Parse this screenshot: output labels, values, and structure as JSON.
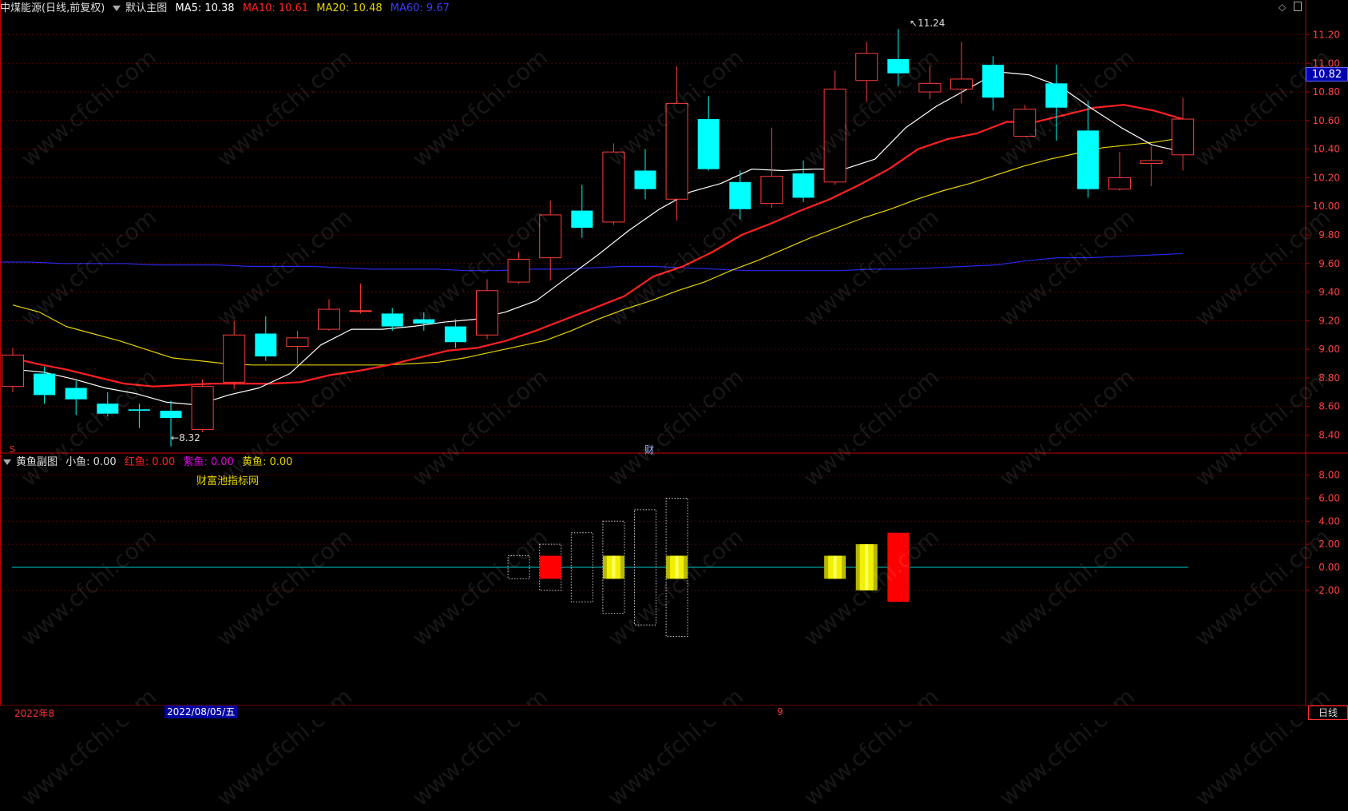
{
  "main_header": {
    "stock": "中煤能源",
    "period": "(日线,前复权)",
    "panel": "默认主图",
    "ma5_label": "MA5: 10.38",
    "ma10_label": "MA10: 10.61",
    "ma20_label": "MA20: 10.48",
    "ma60_label": "MA60: 9.67",
    "colors": {
      "ma5": "#ffffff",
      "ma10": "#ff2020",
      "ma20": "#e6d200",
      "ma60": "#3030ff"
    }
  },
  "sub_header": {
    "panel": "黄鱼副图",
    "small": "小鱼: 0.00",
    "red": "红鱼: 0.00",
    "purple": "紫鱼: 0.00",
    "yellow": "黄鱼: 0.00",
    "brand": "财富池指标网"
  },
  "price_badge": "10.82",
  "marks": {
    "low": "8.32",
    "high": "11.24",
    "left_s": "S",
    "cai": "财"
  },
  "bottom_bar": {
    "left": "2022年8",
    "date": "2022/08/05/五",
    "mid": "9",
    "right": "日线"
  },
  "watermark": "www.cfchi.com",
  "chart_data": [
    {
      "type": "candlestick",
      "y_ticks": [
        "11.20",
        "11.00",
        "10.80",
        "10.60",
        "10.40",
        "10.20",
        "10.00",
        "9.80",
        "9.60",
        "9.40",
        "9.20",
        "9.00",
        "8.80",
        "8.60",
        "8.40"
      ],
      "ylim": [
        8.28,
        11.32
      ],
      "candles": [
        {
          "o": 8.74,
          "h": 9.01,
          "l": 8.7,
          "c": 8.96
        },
        {
          "o": 8.83,
          "h": 8.88,
          "l": 8.62,
          "c": 8.68
        },
        {
          "o": 8.73,
          "h": 8.78,
          "l": 8.54,
          "c": 8.65
        },
        {
          "o": 8.62,
          "h": 8.7,
          "l": 8.53,
          "c": 8.55
        },
        {
          "o": 8.58,
          "h": 8.62,
          "l": 8.45,
          "c": 8.57
        },
        {
          "o": 8.57,
          "h": 8.64,
          "l": 8.32,
          "c": 8.52
        },
        {
          "o": 8.44,
          "h": 8.79,
          "l": 8.42,
          "c": 8.74
        },
        {
          "o": 8.77,
          "h": 9.2,
          "l": 8.72,
          "c": 9.1
        },
        {
          "o": 9.11,
          "h": 9.23,
          "l": 8.92,
          "c": 8.95
        },
        {
          "o": 9.02,
          "h": 9.13,
          "l": 8.9,
          "c": 9.08
        },
        {
          "o": 9.14,
          "h": 9.35,
          "l": 9.13,
          "c": 9.28
        },
        {
          "o": 9.27,
          "h": 9.46,
          "l": 9.25,
          "c": 9.27
        },
        {
          "o": 9.25,
          "h": 9.29,
          "l": 9.13,
          "c": 9.16
        },
        {
          "o": 9.21,
          "h": 9.26,
          "l": 9.13,
          "c": 9.18
        },
        {
          "o": 9.16,
          "h": 9.21,
          "l": 9.01,
          "c": 9.05
        },
        {
          "o": 9.1,
          "h": 9.49,
          "l": 9.07,
          "c": 9.41
        },
        {
          "o": 9.47,
          "h": 9.68,
          "l": 9.46,
          "c": 9.63
        },
        {
          "o": 9.64,
          "h": 10.04,
          "l": 9.48,
          "c": 9.94
        },
        {
          "o": 9.97,
          "h": 10.15,
          "l": 9.78,
          "c": 9.85
        },
        {
          "o": 9.89,
          "h": 10.44,
          "l": 9.87,
          "c": 10.38
        },
        {
          "o": 10.25,
          "h": 10.4,
          "l": 10.05,
          "c": 10.12
        },
        {
          "o": 10.05,
          "h": 10.98,
          "l": 9.9,
          "c": 10.72
        },
        {
          "o": 10.61,
          "h": 10.77,
          "l": 10.25,
          "c": 10.26
        },
        {
          "o": 10.17,
          "h": 10.25,
          "l": 9.91,
          "c": 9.98
        },
        {
          "o": 10.02,
          "h": 10.55,
          "l": 9.99,
          "c": 10.21
        },
        {
          "o": 10.23,
          "h": 10.32,
          "l": 10.03,
          "c": 10.06
        },
        {
          "o": 10.17,
          "h": 10.95,
          "l": 10.15,
          "c": 10.82
        },
        {
          "o": 10.88,
          "h": 11.15,
          "l": 10.73,
          "c": 11.07
        },
        {
          "o": 11.03,
          "h": 11.24,
          "l": 10.84,
          "c": 10.93
        },
        {
          "o": 10.8,
          "h": 10.98,
          "l": 10.75,
          "c": 10.86
        },
        {
          "o": 10.82,
          "h": 11.15,
          "l": 10.72,
          "c": 10.89
        },
        {
          "o": 10.99,
          "h": 11.05,
          "l": 10.67,
          "c": 10.76
        },
        {
          "o": 10.49,
          "h": 10.71,
          "l": 10.49,
          "c": 10.68
        },
        {
          "o": 10.86,
          "h": 10.99,
          "l": 10.46,
          "c": 10.69
        },
        {
          "o": 10.53,
          "h": 10.74,
          "l": 10.06,
          "c": 10.12
        },
        {
          "o": 10.12,
          "h": 10.38,
          "l": 10.11,
          "c": 10.2
        },
        {
          "o": 10.3,
          "h": 10.42,
          "l": 10.14,
          "c": 10.32
        },
        {
          "o": 10.36,
          "h": 10.76,
          "l": 10.25,
          "c": 10.61
        }
      ],
      "ma5": [
        8.86,
        8.84,
        8.79,
        8.73,
        8.69,
        8.63,
        8.61,
        8.68,
        8.73,
        8.83,
        9.03,
        9.14,
        9.14,
        9.16,
        9.19,
        9.21,
        9.26,
        9.34,
        9.5,
        9.66,
        9.83,
        9.98,
        10.1,
        10.16,
        10.26,
        10.25,
        10.26,
        10.26,
        10.33,
        10.55,
        10.7,
        10.82,
        10.94,
        10.92,
        10.84,
        10.69,
        10.55,
        10.43,
        10.38
      ],
      "ma10": [
        8.95,
        8.9,
        8.86,
        8.81,
        8.76,
        8.74,
        8.75,
        8.76,
        8.76,
        8.76,
        8.77,
        8.82,
        8.85,
        8.89,
        8.94,
        8.99,
        9.01,
        9.06,
        9.13,
        9.21,
        9.29,
        9.37,
        9.51,
        9.58,
        9.68,
        9.8,
        9.88,
        9.97,
        10.05,
        10.15,
        10.26,
        10.4,
        10.47,
        10.51,
        10.59,
        10.59,
        10.64,
        10.69,
        10.71,
        10.67,
        10.61
      ],
      "ma20": [
        9.31,
        9.26,
        9.16,
        9.11,
        9.06,
        9.0,
        8.94,
        8.92,
        8.9,
        8.89,
        8.89,
        8.89,
        8.89,
        8.89,
        8.89,
        8.9,
        8.91,
        8.94,
        8.98,
        9.02,
        9.06,
        9.13,
        9.21,
        9.28,
        9.34,
        9.41,
        9.47,
        9.55,
        9.62,
        9.7,
        9.78,
        9.85,
        9.92,
        9.98,
        10.05,
        10.11,
        10.16,
        10.22,
        10.28,
        10.33,
        10.37,
        10.41,
        10.43,
        10.45,
        10.48
      ],
      "ma60": [
        9.61,
        9.61,
        9.6,
        9.6,
        9.6,
        9.59,
        9.59,
        9.59,
        9.58,
        9.58,
        9.58,
        9.57,
        9.56,
        9.56,
        9.56,
        9.55,
        9.55,
        9.56,
        9.56,
        9.57,
        9.58,
        9.58,
        9.57,
        9.56,
        9.55,
        9.55,
        9.55,
        9.55,
        9.56,
        9.56,
        9.57,
        9.58,
        9.59,
        9.62,
        9.64,
        9.64,
        9.65,
        9.66,
        9.67
      ]
    },
    {
      "type": "bar",
      "y_ticks": [
        "8.00",
        "6.00",
        "4.00",
        "2.00",
        "0.00",
        "-2.00"
      ],
      "ylim": [
        -12,
        9.5
      ],
      "baseline": 0,
      "bars": [
        {
          "i": 16,
          "style": "dotted-white",
          "top": 1,
          "bottom": -1
        },
        {
          "i": 17,
          "style": "dotted-white",
          "top": 2,
          "bottom": -2
        },
        {
          "i": 17,
          "style": "red",
          "top": 1,
          "bottom": -1
        },
        {
          "i": 18,
          "style": "dotted-white",
          "top": 3,
          "bottom": -3
        },
        {
          "i": 19,
          "style": "dotted-white",
          "top": 4,
          "bottom": -4
        },
        {
          "i": 19,
          "style": "yellow",
          "top": 1,
          "bottom": -1
        },
        {
          "i": 20,
          "style": "dotted-white",
          "top": 5,
          "bottom": -5
        },
        {
          "i": 21,
          "style": "dotted-white",
          "top": 6,
          "bottom": -6
        },
        {
          "i": 21,
          "style": "yellow",
          "top": 1,
          "bottom": -1
        },
        {
          "i": 26,
          "style": "yellow",
          "top": 1,
          "bottom": -1
        },
        {
          "i": 27,
          "style": "yellow",
          "top": 2,
          "bottom": -2
        },
        {
          "i": 28,
          "style": "red",
          "top": 3,
          "bottom": -3
        }
      ]
    }
  ]
}
